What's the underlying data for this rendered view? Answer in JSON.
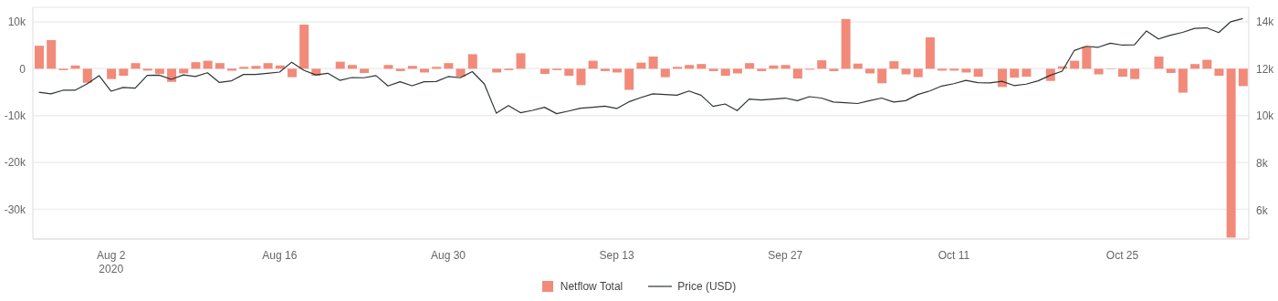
{
  "chart_data": {
    "type": "bar",
    "x": [
      "2020-07-27",
      "2020-07-28",
      "2020-07-29",
      "2020-07-30",
      "2020-07-31",
      "2020-08-01",
      "2020-08-02",
      "2020-08-03",
      "2020-08-04",
      "2020-08-05",
      "2020-08-06",
      "2020-08-07",
      "2020-08-08",
      "2020-08-09",
      "2020-08-10",
      "2020-08-11",
      "2020-08-12",
      "2020-08-13",
      "2020-08-14",
      "2020-08-15",
      "2020-08-16",
      "2020-08-17",
      "2020-08-18",
      "2020-08-19",
      "2020-08-20",
      "2020-08-21",
      "2020-08-22",
      "2020-08-23",
      "2020-08-24",
      "2020-08-25",
      "2020-08-26",
      "2020-08-27",
      "2020-08-28",
      "2020-08-29",
      "2020-08-30",
      "2020-08-31",
      "2020-09-01",
      "2020-09-02",
      "2020-09-03",
      "2020-09-04",
      "2020-09-05",
      "2020-09-06",
      "2020-09-07",
      "2020-09-08",
      "2020-09-09",
      "2020-09-10",
      "2020-09-11",
      "2020-09-12",
      "2020-09-13",
      "2020-09-14",
      "2020-09-15",
      "2020-09-16",
      "2020-09-17",
      "2020-09-18",
      "2020-09-19",
      "2020-09-20",
      "2020-09-21",
      "2020-09-22",
      "2020-09-23",
      "2020-09-24",
      "2020-09-25",
      "2020-09-26",
      "2020-09-27",
      "2020-09-28",
      "2020-09-29",
      "2020-09-30",
      "2020-10-01",
      "2020-10-02",
      "2020-10-03",
      "2020-10-04",
      "2020-10-05",
      "2020-10-06",
      "2020-10-07",
      "2020-10-08",
      "2020-10-09",
      "2020-10-10",
      "2020-10-11",
      "2020-10-12",
      "2020-10-13",
      "2020-10-14",
      "2020-10-15",
      "2020-10-16",
      "2020-10-17",
      "2020-10-18",
      "2020-10-19",
      "2020-10-20",
      "2020-10-21",
      "2020-10-22",
      "2020-10-23",
      "2020-10-24",
      "2020-10-25",
      "2020-10-26",
      "2020-10-27",
      "2020-10-28",
      "2020-10-29",
      "2020-10-30",
      "2020-10-31",
      "2020-11-01",
      "2020-11-02",
      "2020-11-03",
      "2020-11-04"
    ],
    "series": [
      {
        "name": "Netflow Total",
        "color": "#f28a7a",
        "values": [
          4900,
          6100,
          -300,
          700,
          -3000,
          0,
          -2200,
          -1500,
          1200,
          -400,
          -1100,
          -2800,
          -1000,
          1400,
          1700,
          1200,
          -400,
          400,
          600,
          1200,
          700,
          -1800,
          9400,
          -1500,
          0,
          1500,
          800,
          -900,
          0,
          800,
          -500,
          600,
          -800,
          400,
          1200,
          -1700,
          3100,
          0,
          -800,
          -300,
          3300,
          0,
          -1100,
          -300,
          -1500,
          -3500,
          1700,
          -500,
          -800,
          -4500,
          1300,
          2600,
          -1800,
          400,
          800,
          1000,
          -500,
          -1500,
          -1000,
          1200,
          -500,
          700,
          800,
          -2100,
          -200,
          1800,
          -500,
          10600,
          1100,
          -1000,
          -3100,
          1600,
          -1200,
          -1800,
          6700,
          -400,
          -400,
          -800,
          -1700,
          0,
          -3900,
          -1900,
          -1700,
          0,
          -2600,
          500,
          1700,
          4700,
          -1200,
          -100,
          -1700,
          -2200,
          0,
          2600,
          -900,
          -5100,
          1000,
          1900,
          -1500,
          -36000,
          -3700
        ]
      },
      {
        "name": "Price (USD)",
        "type": "line",
        "axis": "y2",
        "color": "#2d3436",
        "values": [
          11010,
          10940,
          11090,
          11090,
          11360,
          11710,
          11050,
          11210,
          11180,
          11720,
          11730,
          11550,
          11740,
          11670,
          11830,
          11420,
          11490,
          11760,
          11760,
          11810,
          11860,
          12280,
          11940,
          11740,
          11810,
          11510,
          11630,
          11620,
          11710,
          11270,
          11450,
          11280,
          11450,
          11460,
          11670,
          11620,
          11880,
          11360,
          10120,
          10440,
          10140,
          10240,
          10370,
          10100,
          10210,
          10330,
          10370,
          10420,
          10320,
          10600,
          10780,
          10940,
          10910,
          10880,
          11060,
          10880,
          10410,
          10510,
          10230,
          10720,
          10680,
          10720,
          10760,
          10650,
          10820,
          10760,
          10590,
          10560,
          10530,
          10650,
          10760,
          10590,
          10650,
          10910,
          11060,
          11270,
          11370,
          11510,
          11410,
          11400,
          11470,
          11290,
          11350,
          11490,
          11720,
          11900,
          12770,
          12950,
          12910,
          13080,
          13000,
          13010,
          13600,
          13260,
          13420,
          13540,
          13710,
          13730,
          13530,
          13990,
          14120
        ]
      }
    ],
    "xlim": [
      "2020-07-26T12:00",
      "2020-11-04T12:00"
    ],
    "xticks": [
      {
        "value": "2020-08-02",
        "label": "Aug 2\n2020"
      },
      {
        "value": "2020-08-16",
        "label": "Aug 16"
      },
      {
        "value": "2020-08-30",
        "label": "Aug 30"
      },
      {
        "value": "2020-09-13",
        "label": "Sep 13"
      },
      {
        "value": "2020-09-27",
        "label": "Sep 27"
      },
      {
        "value": "2020-10-11",
        "label": "Oct 11"
      },
      {
        "value": "2020-10-25",
        "label": "Oct 25"
      }
    ],
    "ylim": [
      -36300,
      13100
    ],
    "yticks": [
      {
        "value": -30000,
        "label": "-30k"
      },
      {
        "value": -20000,
        "label": "-20k"
      },
      {
        "value": -10000,
        "label": "-10k"
      },
      0,
      {
        "value": 10000,
        "label": "10k"
      }
    ],
    "y2lim": [
      4800,
      14600
    ],
    "y2ticks": [
      {
        "value": 6000,
        "label": "6k"
      },
      {
        "value": 8000,
        "label": "8k"
      },
      {
        "value": 10000,
        "label": "10k"
      },
      {
        "value": 12000,
        "label": "12k"
      },
      {
        "value": 14000,
        "label": "14k"
      }
    ],
    "grid": "y",
    "legend": "bottom"
  }
}
